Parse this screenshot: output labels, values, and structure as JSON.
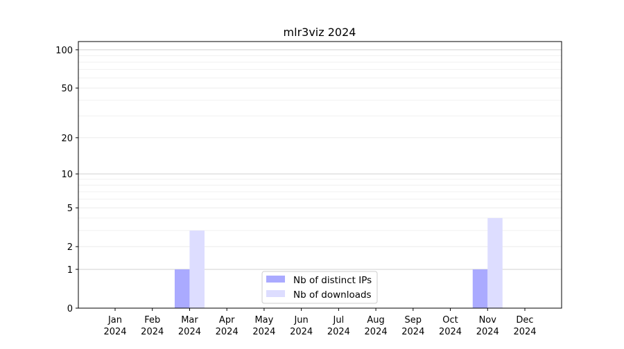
{
  "chart_data": {
    "type": "bar",
    "title": "mlr3viz 2024",
    "xlabel": "",
    "ylabel": "",
    "y_scale": "log(1+y)",
    "ylim": [
      0,
      116
    ],
    "y_ticks": [
      0,
      1,
      2,
      5,
      10,
      20,
      50,
      100
    ],
    "y_tick_labels": [
      "0",
      "1",
      "2",
      "5",
      "10",
      "20",
      "50",
      "100"
    ],
    "grid": true,
    "legend_position": "bottom-center",
    "categories": [
      [
        "Jan",
        "2024"
      ],
      [
        "Feb",
        "2024"
      ],
      [
        "Mar",
        "2024"
      ],
      [
        "Apr",
        "2024"
      ],
      [
        "May",
        "2024"
      ],
      [
        "Jun",
        "2024"
      ],
      [
        "Jul",
        "2024"
      ],
      [
        "Aug",
        "2024"
      ],
      [
        "Sep",
        "2024"
      ],
      [
        "Oct",
        "2024"
      ],
      [
        "Nov",
        "2024"
      ],
      [
        "Dec",
        "2024"
      ]
    ],
    "series": [
      {
        "name": "Nb of distinct IPs",
        "color": "#aaaaff",
        "values": [
          0,
          0,
          1,
          0,
          0,
          0,
          0,
          0,
          0,
          0,
          1,
          0
        ]
      },
      {
        "name": "Nb of downloads",
        "color": "#ddddff",
        "values": [
          0,
          0,
          3,
          0,
          0,
          0,
          0,
          0,
          0,
          0,
          4,
          0
        ]
      }
    ]
  }
}
